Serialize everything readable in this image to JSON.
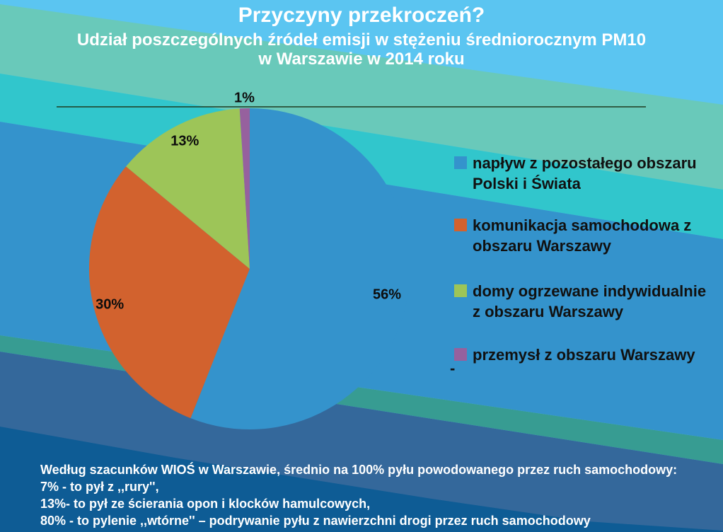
{
  "slide": {
    "title": "Przyczyny przekroczeń?",
    "subtitle_line1": "Udział poszczególnych źródeł emisji w stężeniu średniorocznym PM10",
    "subtitle_line2": "w Warszawie w 2014 roku"
  },
  "chart_data": {
    "type": "pie",
    "title": "Udział poszczególnych źródeł emisji w stężeniu średniorocznym PM10 w Warszawie w 2014 roku",
    "categories": [
      "napływ z pozostałego obszaru Polski i Świata",
      "komunikacja samochodowa z obszaru Warszawy",
      "domy ogrzewane indywidualnie z obszaru Warszawy",
      "przemysł z obszaru Warszawy"
    ],
    "values": [
      56,
      30,
      13,
      1
    ],
    "data_labels": [
      "56%",
      "30%",
      "13%",
      "1%"
    ],
    "colors": [
      "#3493CC",
      "#D2622E",
      "#9DC558",
      "#96619E"
    ],
    "start_angle_deg": -90,
    "direction": "clockwise",
    "legend_position": "right"
  },
  "legend": {
    "items": [
      {
        "label": "napływ z pozostałego obszaru Polski i Świata",
        "color": "#3493CC"
      },
      {
        "label": "komunikacja samochodowa z obszaru Warszawy",
        "color": "#D2622E"
      },
      {
        "label": "domy ogrzewane indywidualnie z obszaru Warszawy",
        "color": "#9DC558"
      },
      {
        "label": "przemysł z obszaru Warszawy",
        "color": "#96619E"
      }
    ],
    "stray_mark": "-"
  },
  "footnote": {
    "lines": [
      "Według szacunków WIOŚ w Warszawie, średnio na 100% pyłu powodowanego przez ruch samochodowy:",
      "7% - to pył z ,,rury'',",
      "13%- to pył ze ścierania opon i klocków hamulcowych,",
      "80% - to pylenie ,,wtórne'' – podrywanie pyłu z nawierzchni drogi przez ruch samochodowy"
    ]
  },
  "colors": {
    "background_bands": [
      "#5BC5F1",
      "#69C9BA",
      "#31C6CC",
      "#3493CC",
      "#379C92",
      "#34689B",
      "#0E5C95"
    ],
    "leader_line": "#1F3B20",
    "title_text": "#FFFFFF",
    "footnote_text": "#FFFFFF",
    "data_label_text": "#0D0D0D",
    "legend_text": "#111111"
  }
}
